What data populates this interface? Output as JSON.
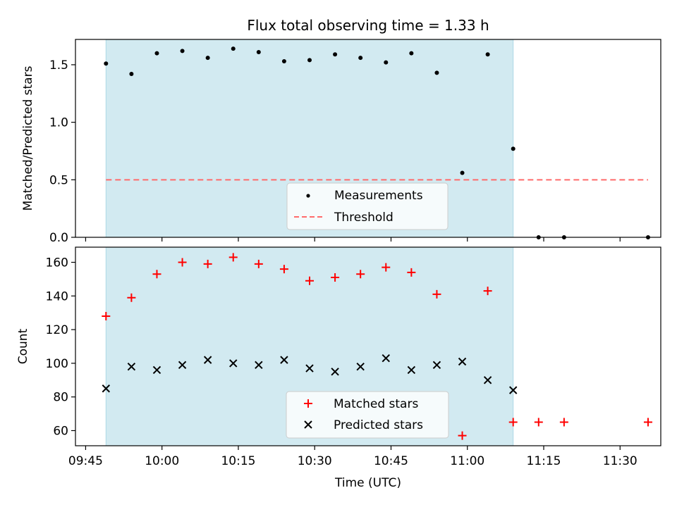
{
  "chart_data": [
    {
      "type": "scatter",
      "title": "Flux total observing time = 1.33 h",
      "xlabel": "",
      "ylabel": "Matched/Predicted stars",
      "ylim": [
        0,
        1.72
      ],
      "yticks": [
        0.0,
        0.5,
        1.0,
        1.5
      ],
      "ytick_labels": [
        "0.0",
        "0.5",
        "1.0",
        "1.5"
      ],
      "xlim_minutes": [
        583,
        698
      ],
      "xticks_minutes": [
        585,
        600,
        615,
        630,
        645,
        660,
        675,
        690
      ],
      "shaded_range_minutes": [
        589,
        669
      ],
      "shade_color": "#add8e6",
      "series": [
        {
          "name": "Measurements",
          "color": "#000000",
          "x_minutes": [
            589,
            594,
            599,
            604,
            609,
            614,
            619,
            624,
            629,
            634,
            639,
            644,
            649,
            654,
            659,
            664,
            669,
            674,
            679,
            695.5
          ],
          "values": [
            1.51,
            1.42,
            1.6,
            1.62,
            1.56,
            1.64,
            1.61,
            1.53,
            1.54,
            1.59,
            1.56,
            1.52,
            1.6,
            1.43,
            0.56,
            1.59,
            0.77,
            0.0,
            0.0,
            0.0
          ]
        },
        {
          "name": "Threshold",
          "color": "#ff6b6b",
          "style": "dashed",
          "x_minutes": [
            589,
            695.5
          ],
          "values": [
            0.5,
            0.5
          ]
        }
      ],
      "legend": [
        "Measurements",
        "Threshold"
      ],
      "legend_position": "lower-center"
    },
    {
      "type": "scatter",
      "title": "",
      "xlabel": "Time (UTC)",
      "ylabel": "Count",
      "ylim": [
        51,
        169
      ],
      "yticks": [
        60,
        80,
        100,
        120,
        140,
        160
      ],
      "ytick_labels": [
        "60",
        "80",
        "100",
        "120",
        "140",
        "160"
      ],
      "xlim_minutes": [
        583,
        698
      ],
      "xticks_minutes": [
        585,
        600,
        615,
        630,
        645,
        660,
        675,
        690
      ],
      "xtick_labels": [
        "09:45",
        "10:00",
        "10:15",
        "10:30",
        "10:45",
        "11:00",
        "11:15",
        "11:30"
      ],
      "shaded_range_minutes": [
        589,
        669
      ],
      "shade_color": "#add8e6",
      "series": [
        {
          "name": "Matched stars",
          "color": "#ff0000",
          "marker": "plus",
          "x_minutes": [
            589,
            594,
            599,
            604,
            609,
            614,
            619,
            624,
            629,
            634,
            639,
            644,
            649,
            654,
            659,
            664,
            669,
            674,
            679,
            695.5
          ],
          "values": [
            128,
            139,
            153,
            160,
            159,
            163,
            159,
            156,
            149,
            151,
            153,
            157,
            154,
            141,
            57,
            143,
            65,
            65,
            65,
            65
          ]
        },
        {
          "name": "Predicted stars",
          "color": "#000000",
          "marker": "x",
          "x_minutes": [
            589,
            594,
            599,
            604,
            609,
            614,
            619,
            624,
            629,
            634,
            639,
            644,
            649,
            654,
            659,
            664,
            669
          ],
          "values": [
            85,
            98,
            96,
            99,
            102,
            100,
            99,
            102,
            97,
            95,
            98,
            103,
            96,
            99,
            101,
            90,
            84
          ]
        }
      ],
      "legend": [
        "Matched stars",
        "Predicted stars"
      ],
      "legend_position": "lower-center"
    }
  ]
}
